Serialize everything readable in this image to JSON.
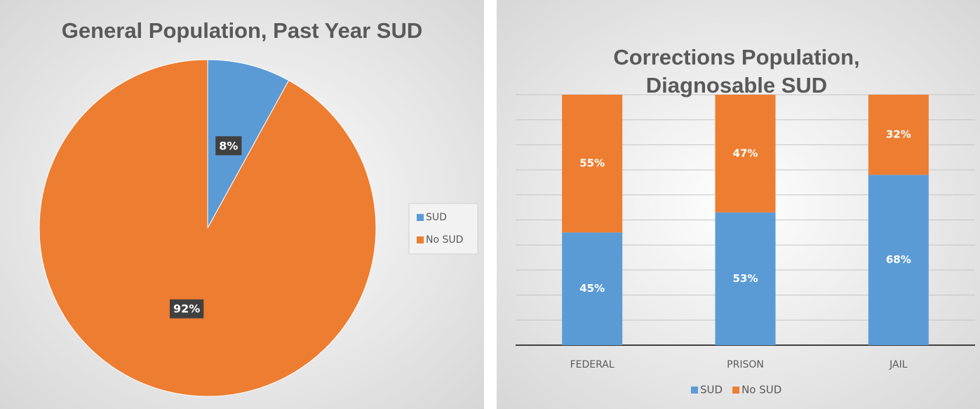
{
  "chart_data": [
    {
      "type": "pie",
      "title": "General Population, Past Year SUD",
      "categories": [
        "SUD",
        "No SUD"
      ],
      "values": [
        8,
        92
      ],
      "value_labels": [
        "8%",
        "92%"
      ],
      "colors": [
        "#5b9bd5",
        "#ed7d31"
      ],
      "legend": "right"
    },
    {
      "type": "stacked_bar",
      "title": "Corrections Population, Diagnosable SUD",
      "categories": [
        "FEDERAL",
        "PRISON",
        "JAIL"
      ],
      "series": [
        {
          "name": "SUD",
          "color": "#5b9bd5",
          "values": [
            45,
            53,
            68
          ],
          "value_labels": [
            "45%",
            "53%",
            "68%"
          ]
        },
        {
          "name": "No SUD",
          "color": "#ed7d31",
          "values": [
            55,
            47,
            32
          ],
          "value_labels": [
            "55%",
            "47%",
            "32%"
          ]
        }
      ],
      "ylim": [
        0,
        100
      ],
      "yticks": [
        0,
        10,
        20,
        30,
        40,
        50,
        60,
        70,
        80,
        90,
        100
      ],
      "grid": true,
      "legend": "bottom"
    }
  ]
}
